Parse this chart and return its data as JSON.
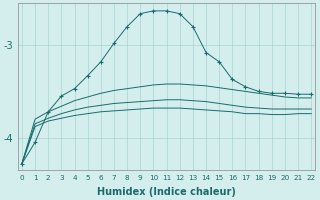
{
  "xlabel": "Humidex (Indice chaleur)",
  "bg_color": "#d4eeee",
  "grid_color": "#a8d4d4",
  "line_color": "#1a6b6b",
  "x_ticks": [
    0,
    1,
    2,
    3,
    4,
    5,
    6,
    7,
    8,
    9,
    10,
    11,
    12,
    13,
    14,
    15,
    16,
    17,
    18,
    19,
    20,
    21,
    22
  ],
  "ylim": [
    -4.35,
    -2.55
  ],
  "yticks": [
    -4.0,
    -3.0
  ],
  "series": {
    "marked_line": [
      -4.28,
      -4.05,
      -3.72,
      -3.55,
      -3.47,
      -3.33,
      -3.18,
      -2.98,
      -2.8,
      -2.66,
      -2.63,
      -2.63,
      -2.66,
      -2.8,
      -3.08,
      -3.18,
      -3.37,
      -3.45,
      -3.5,
      -3.52,
      -3.52,
      -3.53,
      -3.53
    ],
    "smooth_lines": [
      [
        -4.28,
        -3.8,
        -3.72,
        -3.66,
        -3.6,
        -3.56,
        -3.52,
        -3.49,
        -3.47,
        -3.45,
        -3.43,
        -3.42,
        -3.42,
        -3.43,
        -3.44,
        -3.46,
        -3.48,
        -3.5,
        -3.52,
        -3.54,
        -3.56,
        -3.57,
        -3.57
      ],
      [
        -4.28,
        -3.85,
        -3.79,
        -3.74,
        -3.7,
        -3.67,
        -3.65,
        -3.63,
        -3.62,
        -3.61,
        -3.6,
        -3.59,
        -3.59,
        -3.6,
        -3.61,
        -3.63,
        -3.65,
        -3.67,
        -3.68,
        -3.69,
        -3.69,
        -3.69,
        -3.69
      ],
      [
        -4.28,
        -3.88,
        -3.82,
        -3.79,
        -3.76,
        -3.74,
        -3.72,
        -3.71,
        -3.7,
        -3.69,
        -3.68,
        -3.68,
        -3.68,
        -3.69,
        -3.7,
        -3.71,
        -3.72,
        -3.74,
        -3.74,
        -3.75,
        -3.75,
        -3.74,
        -3.74
      ]
    ]
  }
}
